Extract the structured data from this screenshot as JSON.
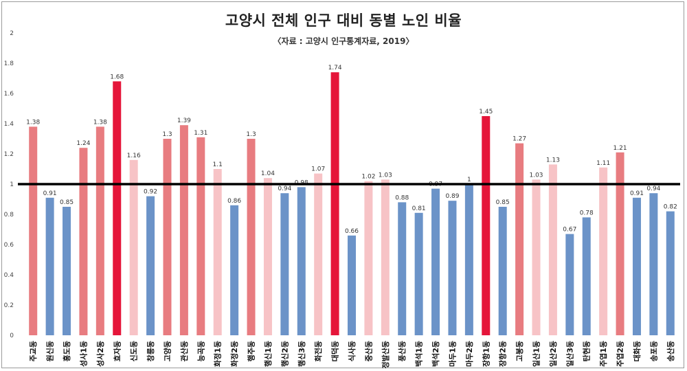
{
  "chart_data": {
    "type": "bar",
    "title": "고양시 전체 인구 대비 동별 노인 비율",
    "subtitle": "〈자료 : 고양시 인구통계자료, 2019〉",
    "xlabel": "",
    "ylabel": "",
    "ylim": [
      0,
      2
    ],
    "yticks": [
      0,
      0.2,
      0.4,
      0.6,
      0.8,
      1,
      1.2,
      1.4,
      1.6,
      1.8,
      2
    ],
    "reference_line": 1,
    "colors": {
      "low": "#6b93c8",
      "high_mid": "#e87c80",
      "high_light": "#f7c3c6",
      "high_top": "#e5163a",
      "reference": "#000000"
    },
    "categories": [
      "주교동",
      "원신동",
      "흥도동",
      "성사1동",
      "성사2동",
      "효자동",
      "신도동",
      "창릉동",
      "고양동",
      "관산동",
      "능곡동",
      "화정1동",
      "화정2동",
      "행주동",
      "행신1동",
      "행신2동",
      "행신3동",
      "화전동",
      "대덕동",
      "식사동",
      "중산동",
      "정발산동",
      "풍산동",
      "백석1동",
      "백석2동",
      "마두1동",
      "마두2동",
      "장항1동",
      "장항2동",
      "고봉동",
      "일산1동",
      "일산2동",
      "일산3동",
      "탄현동",
      "주엽1동",
      "주엽2동",
      "대화동",
      "송포동",
      "송산동"
    ],
    "values": [
      1.38,
      0.91,
      0.85,
      1.24,
      1.38,
      1.68,
      1.16,
      0.92,
      1.3,
      1.39,
      1.31,
      1.1,
      0.86,
      1.3,
      1.04,
      0.94,
      0.98,
      1.07,
      1.74,
      0.66,
      1.02,
      1.03,
      0.88,
      0.81,
      0.97,
      0.89,
      1.0,
      1.45,
      0.85,
      1.27,
      1.03,
      1.13,
      0.67,
      0.78,
      1.11,
      1.21,
      0.91,
      0.94,
      0.82
    ],
    "value_labels": [
      "1.38",
      "0.91",
      "0.85",
      "1.24",
      "1.38",
      "1.68",
      "1.16",
      "0.92",
      "1.3",
      "1.39",
      "1.31",
      "1.1",
      "0.86",
      "1.3",
      "1.04",
      "0.94",
      "0.98",
      "1.07",
      "1.74",
      "0.66",
      "1.02",
      "1.03",
      "0.88",
      "0.81",
      "0.97",
      "0.89",
      "1",
      "1.45",
      "0.85",
      "1.27",
      "1.03",
      "1.13",
      "0.67",
      "0.78",
      "1.11",
      "1.21",
      "0.91",
      "0.94",
      "0.82"
    ],
    "color_groups": [
      "high_mid",
      "low",
      "low",
      "high_mid",
      "high_mid",
      "high_top",
      "high_light",
      "low",
      "high_mid",
      "high_mid",
      "high_mid",
      "high_light",
      "low",
      "high_mid",
      "high_light",
      "low",
      "low",
      "high_light",
      "high_top",
      "low",
      "high_light",
      "high_light",
      "low",
      "low",
      "low",
      "low",
      "low",
      "high_top",
      "low",
      "high_mid",
      "high_light",
      "high_light",
      "low",
      "low",
      "high_light",
      "high_mid",
      "low",
      "low",
      "low"
    ]
  }
}
